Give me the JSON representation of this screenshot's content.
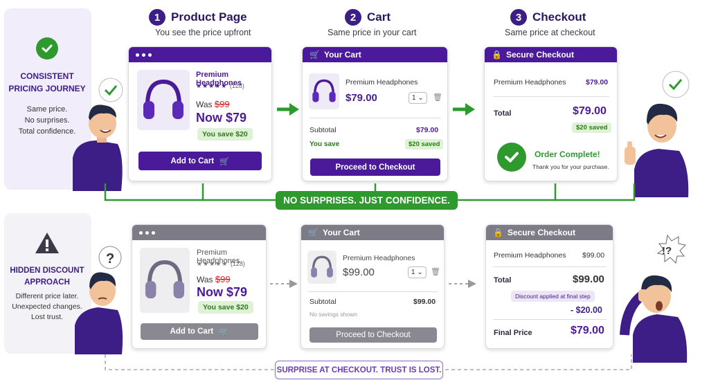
{
  "steps": [
    {
      "num": "1",
      "title": "Product Page",
      "sub": "You see the price upfront"
    },
    {
      "num": "2",
      "title": "Cart",
      "sub": "Same price in your cart"
    },
    {
      "num": "3",
      "title": "Checkout",
      "sub": "Same price at checkout"
    }
  ],
  "top": {
    "side": {
      "title1": "CONSISTENT",
      "title2": "PRICING JOURNEY",
      "l1": "Same price.",
      "l2": "No surprises.",
      "l3": "Total confidence."
    },
    "product": {
      "name": "Premium Headphones",
      "stars": "★★★★★",
      "reviews": "(128)",
      "was_label": "Was",
      "was_price": "$99",
      "now": "Now $79",
      "save": "You save $20",
      "add": "Add to Cart"
    },
    "cart": {
      "header": "Your Cart",
      "name": "Premium Headphones",
      "price": "$79.00",
      "qty": "1",
      "subtotal_label": "Subtotal",
      "subtotal": "$79.00",
      "save_label": "You save",
      "saved": "$20 saved",
      "proceed": "Proceed to Checkout"
    },
    "checkout": {
      "header": "Secure Checkout",
      "name": "Premium Headphones",
      "price": "$79.00",
      "total_label": "Total",
      "total": "$79.00",
      "saved": "$20 saved",
      "complete": "Order Complete!",
      "thanks": "Thank you for your purchase."
    },
    "banner": "NO SURPRISES. JUST CONFIDENCE."
  },
  "bottom": {
    "side": {
      "title1": "HIDDEN DISCOUNT",
      "title2": "APPROACH",
      "l1": "Different price later.",
      "l2": "Unexpected changes.",
      "l3": "Lost trust."
    },
    "product": {
      "name": "Premium Headphones",
      "stars": "★★★★★",
      "reviews": "(128)",
      "was_label": "Was",
      "was_price": "$99",
      "now": "Now $79",
      "save": "You save $20",
      "add": "Add to Cart"
    },
    "cart": {
      "header": "Your Cart",
      "name": "Premium Headphones",
      "price": "$99.00",
      "qty": "1",
      "subtotal_label": "Subtotal",
      "subtotal": "$99.00",
      "nosave": "No savings shown",
      "proceed": "Proceed to Checkout"
    },
    "checkout": {
      "header": "Secure Checkout",
      "name": "Premium Headphones",
      "price": "$99.00",
      "total_label": "Total",
      "total": "$99.00",
      "discount_note": "Discount applied at final step",
      "discount": "- $20.00",
      "final_label": "Final Price",
      "final": "$79.00"
    },
    "banner": "SURPRISE AT CHECKOUT.  TRUST IS LOST.",
    "exclaim": "!?"
  },
  "colors": {
    "brand": "#4a1a9a",
    "green": "#2e9a2e",
    "gray": "#8a8992"
  }
}
